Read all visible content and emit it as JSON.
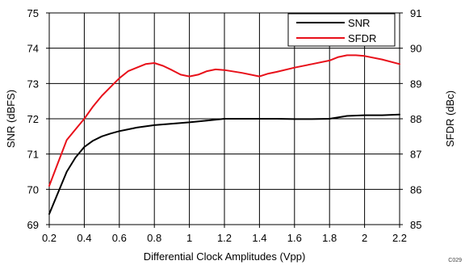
{
  "chart_data": {
    "type": "line",
    "xlabel": "Differential Clock Amplitudes (Vpp)",
    "ylabel": "SNR (dBFS)",
    "y2label": "SFDR (dBc)",
    "xlim": [
      0.2,
      2.2
    ],
    "ylim": [
      69,
      75
    ],
    "y2lim": [
      85,
      91
    ],
    "xticks": [
      "0.2",
      "0.4",
      "0.6",
      "0.8",
      "1",
      "1.2",
      "1.4",
      "1.6",
      "1.8",
      "2",
      "2.2"
    ],
    "yticks": [
      "69",
      "70",
      "71",
      "72",
      "73",
      "74",
      "75"
    ],
    "y2ticks": [
      "85",
      "86",
      "87",
      "88",
      "89",
      "90",
      "91"
    ],
    "grid": true,
    "legend_position": "top-right",
    "figure_code": "C029",
    "series": [
      {
        "name": "SNR",
        "axis": "left",
        "color": "#000000",
        "x": [
          0.2,
          0.25,
          0.3,
          0.35,
          0.4,
          0.45,
          0.5,
          0.55,
          0.6,
          0.65,
          0.7,
          0.8,
          0.9,
          1.0,
          1.1,
          1.2,
          1.3,
          1.4,
          1.5,
          1.6,
          1.7,
          1.8,
          1.9,
          2.0,
          2.1,
          2.2
        ],
        "values": [
          69.3,
          69.9,
          70.5,
          70.9,
          71.2,
          71.38,
          71.5,
          71.58,
          71.65,
          71.7,
          71.75,
          71.82,
          71.86,
          71.9,
          71.95,
          72.0,
          72.0,
          72.0,
          72.0,
          71.99,
          71.99,
          72.0,
          72.08,
          72.1,
          72.1,
          72.12
        ]
      },
      {
        "name": "SFDR",
        "axis": "right",
        "color": "#e8101a",
        "x": [
          0.2,
          0.25,
          0.3,
          0.35,
          0.4,
          0.45,
          0.5,
          0.55,
          0.6,
          0.65,
          0.7,
          0.75,
          0.8,
          0.85,
          0.9,
          0.95,
          1.0,
          1.05,
          1.1,
          1.15,
          1.2,
          1.3,
          1.4,
          1.45,
          1.5,
          1.6,
          1.7,
          1.8,
          1.85,
          1.9,
          1.95,
          2.0,
          2.1,
          2.2
        ],
        "values": [
          86.1,
          86.75,
          87.4,
          87.7,
          88.0,
          88.35,
          88.65,
          88.9,
          89.15,
          89.35,
          89.45,
          89.55,
          89.58,
          89.5,
          89.38,
          89.25,
          89.2,
          89.25,
          89.35,
          89.4,
          89.38,
          89.3,
          89.2,
          89.28,
          89.33,
          89.45,
          89.55,
          89.65,
          89.75,
          89.8,
          89.8,
          89.78,
          89.68,
          89.55
        ]
      }
    ]
  }
}
